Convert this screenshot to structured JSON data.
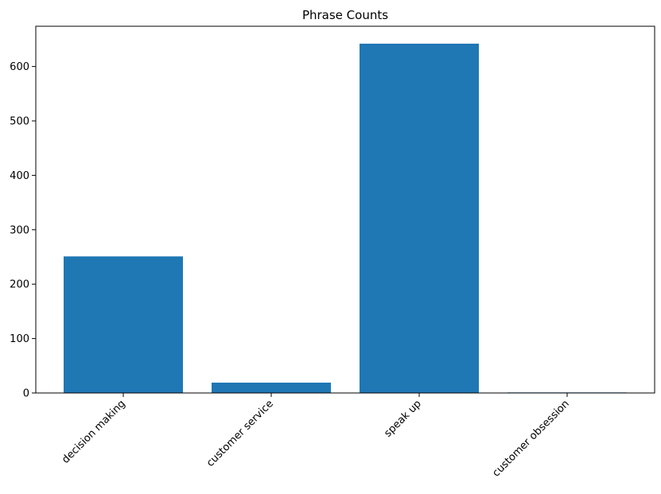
{
  "chart_data": {
    "type": "bar",
    "title": "Phrase Counts",
    "xlabel": "",
    "ylabel": "",
    "categories": [
      "decision making",
      "customer service",
      "speak up",
      "customer obsession"
    ],
    "values": [
      251,
      19,
      642,
      1
    ],
    "ylim": [
      0,
      674
    ],
    "yticks": [
      0,
      100,
      200,
      300,
      400,
      500,
      600
    ],
    "ytick_labels": [
      "0",
      "100",
      "200",
      "300",
      "400",
      "500",
      "600"
    ],
    "xtick_rotation_deg": 45,
    "bar_color": "#1f77b4",
    "grid": false,
    "legend": "none"
  }
}
